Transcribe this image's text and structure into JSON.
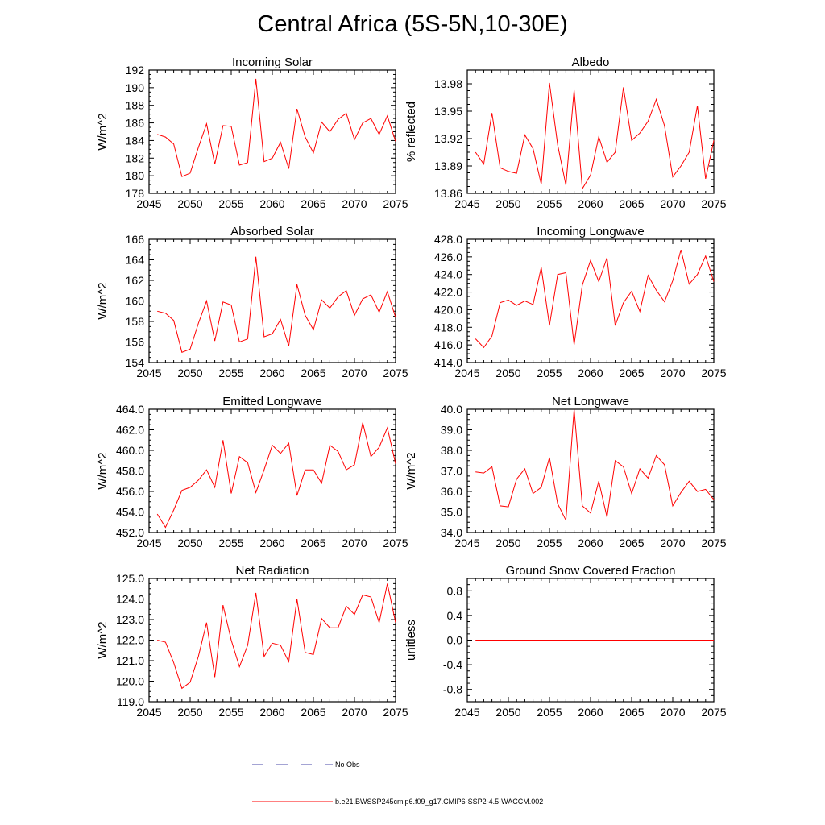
{
  "main_title": "Central Africa (5S-5N,10-30E)",
  "colors": {
    "model_line": "#ff0000",
    "obs_line": "#4a4aaa",
    "axis": "#000000"
  },
  "legend": {
    "entries": [
      {
        "label": "No Obs",
        "style": "dashed",
        "color": "#4a4aaa"
      },
      {
        "label": "b.e21.BWSSP245cmip6.f09_g17.CMIP6-SSP2-4.5-WACCM.002",
        "style": "solid",
        "color": "#ff0000"
      }
    ]
  },
  "chart_data": [
    {
      "type": "line",
      "title": "Incoming Solar",
      "ylabel": "W/m^2",
      "xlim": [
        2045,
        2075
      ],
      "ylim": [
        178,
        192
      ],
      "xticks": [
        2045,
        2050,
        2055,
        2060,
        2065,
        2070,
        2075
      ],
      "yticks": [
        178,
        180,
        182,
        184,
        186,
        188,
        190,
        192
      ],
      "ytick_decimals": 0,
      "series": [
        {
          "x": [
            2046,
            2047,
            2048,
            2049,
            2050,
            2051,
            2052,
            2053,
            2054,
            2055,
            2056,
            2057,
            2058,
            2059,
            2060,
            2061,
            2062,
            2063,
            2064,
            2065,
            2066,
            2067,
            2068,
            2069,
            2070,
            2071,
            2072,
            2073,
            2074,
            2075
          ],
          "y": [
            184.7,
            184.4,
            183.6,
            179.9,
            180.3,
            183.2,
            185.9,
            181.3,
            185.7,
            185.6,
            181.2,
            181.5,
            191.0,
            181.6,
            182.0,
            183.8,
            180.8,
            187.6,
            184.4,
            182.6,
            186.1,
            185.0,
            186.4,
            187.1,
            184.1,
            186.0,
            186.5,
            184.7,
            186.8,
            183.9
          ]
        }
      ]
    },
    {
      "type": "line",
      "title": "Albedo",
      "ylabel": "% reflected",
      "xlim": [
        2045,
        2075
      ],
      "ylim": [
        13.86,
        13.995
      ],
      "xticks": [
        2045,
        2050,
        2055,
        2060,
        2065,
        2070,
        2075
      ],
      "yticks": [
        13.86,
        13.89,
        13.92,
        13.95,
        13.98
      ],
      "ytick_decimals": 2,
      "series": [
        {
          "x": [
            2046,
            2047,
            2048,
            2049,
            2050,
            2051,
            2052,
            2053,
            2054,
            2055,
            2056,
            2057,
            2058,
            2059,
            2060,
            2061,
            2062,
            2063,
            2064,
            2065,
            2066,
            2067,
            2068,
            2069,
            2070,
            2071,
            2072,
            2073,
            2074,
            2075
          ],
          "y": [
            13.905,
            13.892,
            13.948,
            13.888,
            13.884,
            13.882,
            13.924,
            13.909,
            13.87,
            13.981,
            13.913,
            13.869,
            13.973,
            13.865,
            13.88,
            13.922,
            13.894,
            13.905,
            13.976,
            13.918,
            13.926,
            13.939,
            13.963,
            13.934,
            13.878,
            13.89,
            13.905,
            13.956,
            13.876,
            13.918
          ]
        }
      ]
    },
    {
      "type": "line",
      "title": "Absorbed Solar",
      "ylabel": "W/m^2",
      "xlim": [
        2045,
        2075
      ],
      "ylim": [
        154,
        166
      ],
      "xticks": [
        2045,
        2050,
        2055,
        2060,
        2065,
        2070,
        2075
      ],
      "yticks": [
        154,
        156,
        158,
        160,
        162,
        164,
        166
      ],
      "ytick_decimals": 0,
      "series": [
        {
          "x": [
            2046,
            2047,
            2048,
            2049,
            2050,
            2051,
            2052,
            2053,
            2054,
            2055,
            2056,
            2057,
            2058,
            2059,
            2060,
            2061,
            2062,
            2063,
            2064,
            2065,
            2066,
            2067,
            2068,
            2069,
            2070,
            2071,
            2072,
            2073,
            2074,
            2075
          ],
          "y": [
            159.0,
            158.8,
            158.1,
            155.0,
            155.3,
            157.8,
            160.0,
            156.1,
            159.9,
            159.6,
            156.0,
            156.3,
            164.3,
            156.5,
            156.8,
            158.2,
            155.6,
            161.6,
            158.6,
            157.2,
            160.1,
            159.3,
            160.4,
            161.0,
            158.6,
            160.2,
            160.6,
            158.9,
            160.9,
            158.4
          ]
        }
      ]
    },
    {
      "type": "line",
      "title": "Incoming Longwave",
      "ylabel": "",
      "xlim": [
        2045,
        2075
      ],
      "ylim": [
        414,
        428
      ],
      "xticks": [
        2045,
        2050,
        2055,
        2060,
        2065,
        2070,
        2075
      ],
      "yticks": [
        414,
        416,
        418,
        420,
        422,
        424,
        426,
        428
      ],
      "ytick_decimals": 1,
      "series": [
        {
          "x": [
            2046,
            2047,
            2048,
            2049,
            2050,
            2051,
            2052,
            2053,
            2054,
            2055,
            2056,
            2057,
            2058,
            2059,
            2060,
            2061,
            2062,
            2063,
            2064,
            2065,
            2066,
            2067,
            2068,
            2069,
            2070,
            2071,
            2072,
            2073,
            2074,
            2075
          ],
          "y": [
            416.7,
            415.7,
            417.0,
            420.8,
            421.1,
            420.5,
            421.0,
            420.6,
            424.8,
            418.2,
            424.0,
            424.2,
            416.0,
            422.8,
            425.6,
            423.2,
            425.9,
            418.2,
            420.8,
            422.1,
            419.8,
            423.9,
            422.2,
            420.9,
            423.3,
            426.8,
            422.9,
            424.0,
            426.1,
            423.2
          ]
        }
      ]
    },
    {
      "type": "line",
      "title": "Emitted Longwave",
      "ylabel": "W/m^2",
      "xlim": [
        2045,
        2075
      ],
      "ylim": [
        452,
        464
      ],
      "xticks": [
        2045,
        2050,
        2055,
        2060,
        2065,
        2070,
        2075
      ],
      "yticks": [
        452,
        454,
        456,
        458,
        460,
        462,
        464
      ],
      "ytick_decimals": 1,
      "series": [
        {
          "x": [
            2046,
            2047,
            2048,
            2049,
            2050,
            2051,
            2052,
            2053,
            2054,
            2055,
            2056,
            2057,
            2058,
            2059,
            2060,
            2061,
            2062,
            2063,
            2064,
            2065,
            2066,
            2067,
            2068,
            2069,
            2070,
            2071,
            2072,
            2073,
            2074,
            2075
          ],
          "y": [
            453.8,
            452.5,
            454.2,
            456.1,
            456.4,
            457.1,
            458.1,
            456.4,
            461.0,
            455.8,
            459.4,
            458.8,
            455.9,
            458.1,
            460.5,
            459.7,
            460.7,
            455.6,
            458.1,
            458.1,
            456.8,
            460.5,
            459.9,
            458.1,
            458.6,
            462.7,
            459.4,
            460.3,
            462.2,
            458.7
          ]
        }
      ]
    },
    {
      "type": "line",
      "title": "Net Longwave",
      "ylabel": "W/m^2",
      "xlim": [
        2045,
        2075
      ],
      "ylim": [
        34,
        40
      ],
      "xticks": [
        2045,
        2050,
        2055,
        2060,
        2065,
        2070,
        2075
      ],
      "yticks": [
        34,
        35,
        36,
        37,
        38,
        39,
        40
      ],
      "ytick_decimals": 1,
      "series": [
        {
          "x": [
            2046,
            2047,
            2048,
            2049,
            2050,
            2051,
            2052,
            2053,
            2054,
            2055,
            2056,
            2057,
            2058,
            2059,
            2060,
            2061,
            2062,
            2063,
            2064,
            2065,
            2066,
            2067,
            2068,
            2069,
            2070,
            2071,
            2072,
            2073,
            2074,
            2075
          ],
          "y": [
            36.95,
            36.9,
            37.2,
            35.3,
            35.25,
            36.6,
            37.1,
            35.9,
            36.2,
            37.65,
            35.4,
            34.6,
            40.0,
            35.3,
            34.95,
            36.5,
            34.75,
            37.5,
            37.2,
            35.9,
            37.1,
            36.65,
            37.75,
            37.3,
            35.3,
            35.95,
            36.5,
            36.0,
            36.1,
            35.6
          ]
        }
      ]
    },
    {
      "type": "line",
      "title": "Net Radiation",
      "ylabel": "W/m^2",
      "xlim": [
        2045,
        2075
      ],
      "ylim": [
        119,
        125
      ],
      "xticks": [
        2045,
        2050,
        2055,
        2060,
        2065,
        2070,
        2075
      ],
      "yticks": [
        119,
        120,
        121,
        122,
        123,
        124,
        125
      ],
      "ytick_decimals": 1,
      "series": [
        {
          "x": [
            2046,
            2047,
            2048,
            2049,
            2050,
            2051,
            2052,
            2053,
            2054,
            2055,
            2056,
            2057,
            2058,
            2059,
            2060,
            2061,
            2062,
            2063,
            2064,
            2065,
            2066,
            2067,
            2068,
            2069,
            2070,
            2071,
            2072,
            2073,
            2074,
            2075
          ],
          "y": [
            122.0,
            121.9,
            120.9,
            119.65,
            119.95,
            121.2,
            122.85,
            120.2,
            123.7,
            122.0,
            120.7,
            121.75,
            124.3,
            121.2,
            121.85,
            121.75,
            120.95,
            124.0,
            121.4,
            121.3,
            123.05,
            122.6,
            122.6,
            123.65,
            123.25,
            124.2,
            124.1,
            122.85,
            124.75,
            122.85
          ]
        }
      ]
    },
    {
      "type": "line",
      "title": "Ground Snow Covered Fraction",
      "ylabel": "unitless",
      "xlim": [
        2045,
        2075
      ],
      "ylim": [
        -1.0,
        1.0
      ],
      "xticks": [
        2045,
        2050,
        2055,
        2060,
        2065,
        2070,
        2075
      ],
      "yticks": [
        -0.8,
        -0.4,
        0.0,
        0.4,
        0.8
      ],
      "ytick_decimals": 1,
      "series": [
        {
          "x": [
            2046,
            2075
          ],
          "y": [
            0.0,
            0.0
          ]
        }
      ]
    }
  ]
}
